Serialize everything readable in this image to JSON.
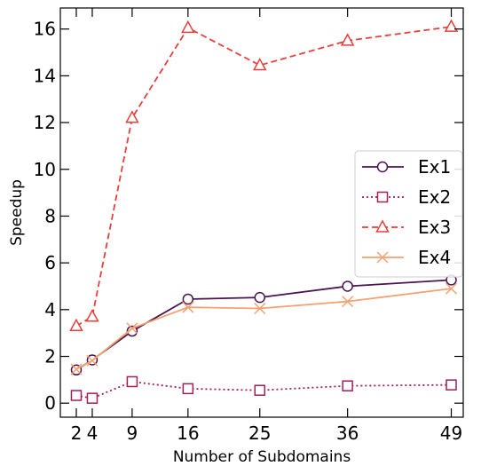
{
  "chart_data": {
    "type": "line",
    "xlabel": "Number of Subdomains",
    "ylabel": "Speedup",
    "x": [
      2,
      4,
      9,
      16,
      25,
      36,
      49
    ],
    "xticks": [
      2,
      4,
      9,
      16,
      25,
      36,
      49
    ],
    "yticks": [
      0,
      2,
      4,
      6,
      8,
      10,
      12,
      14,
      16
    ],
    "xlim": [
      0,
      50.5
    ],
    "ylim": [
      -0.6,
      16.9
    ],
    "grid": false,
    "legend_position": "center-right",
    "series": [
      {
        "name": "Ex1",
        "values": [
          1.42,
          1.85,
          3.08,
          4.45,
          4.52,
          5.0,
          5.27
        ],
        "color": "#4a1650",
        "marker": "circle",
        "linestyle": "solid"
      },
      {
        "name": "Ex2",
        "values": [
          0.33,
          0.21,
          0.92,
          0.62,
          0.55,
          0.74,
          0.78
        ],
        "color": "#a0205a",
        "marker": "square",
        "linestyle": "dotted"
      },
      {
        "name": "Ex3",
        "values": [
          3.3,
          3.7,
          12.2,
          16.05,
          14.45,
          15.5,
          16.1
        ],
        "color": "#e8403c",
        "marker": "triangle",
        "linestyle": "dashed"
      },
      {
        "name": "Ex4",
        "values": [
          1.45,
          1.82,
          3.2,
          4.1,
          4.05,
          4.35,
          4.9
        ],
        "color": "#f4a070",
        "marker": "x",
        "linestyle": "solid"
      }
    ]
  }
}
